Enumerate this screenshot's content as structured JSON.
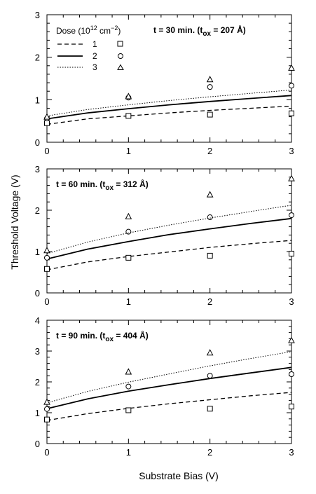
{
  "figure": {
    "xlabel": "Substrate Bias (V)",
    "ylabel": "Threshold Voltage (V)"
  },
  "legend": {
    "title": "Dose (10",
    "title_exp": "12",
    "title_mid": " cm",
    "title_exp2": "−2",
    "title_end": ")",
    "entries": [
      "1",
      "2",
      "3"
    ]
  },
  "chart_data": [
    {
      "type": "line",
      "title_prefix": "t = 30  min.  (t",
      "title_sub": "ox",
      "title_suffix": " = 207  Å)",
      "xlim": [
        0,
        3
      ],
      "ylim": [
        0,
        3
      ],
      "xticks": [
        "0",
        "1",
        "2",
        "3"
      ],
      "yticks": [
        "0",
        "1",
        "2",
        "3"
      ],
      "series": [
        {
          "name": "1",
          "marker": "square",
          "points_x": [
            0,
            1,
            2,
            3
          ],
          "points_y": [
            0.45,
            0.62,
            0.65,
            0.68
          ],
          "curve_x": [
            0,
            0.5,
            1,
            1.5,
            2,
            2.5,
            3
          ],
          "curve_y": [
            0.42,
            0.55,
            0.62,
            0.69,
            0.75,
            0.8,
            0.85
          ]
        },
        {
          "name": "2",
          "marker": "circle",
          "points_x": [
            0,
            1,
            2,
            3
          ],
          "points_y": [
            0.56,
            1.05,
            1.3,
            1.33
          ],
          "curve_x": [
            0,
            0.5,
            1,
            1.5,
            2,
            2.5,
            3
          ],
          "curve_y": [
            0.55,
            0.69,
            0.79,
            0.88,
            0.96,
            1.03,
            1.1
          ]
        },
        {
          "name": "3",
          "marker": "triangle",
          "points_x": [
            0,
            1,
            2,
            3
          ],
          "points_y": [
            0.6,
            1.08,
            1.48,
            1.75
          ],
          "curve_x": [
            0,
            0.5,
            1,
            1.5,
            2,
            2.5,
            3
          ],
          "curve_y": [
            0.62,
            0.77,
            0.88,
            0.98,
            1.07,
            1.15,
            1.23
          ]
        }
      ]
    },
    {
      "type": "line",
      "title_prefix": "t = 60  min.  (t",
      "title_sub": "ox",
      "title_suffix": " = 312  Å)",
      "xlim": [
        0,
        3
      ],
      "ylim": [
        0,
        3
      ],
      "xticks": [
        "0",
        "1",
        "2",
        "3"
      ],
      "yticks": [
        "0",
        "1",
        "2",
        "3"
      ],
      "series": [
        {
          "name": "1",
          "marker": "square",
          "points_x": [
            0,
            1,
            2,
            3
          ],
          "points_y": [
            0.58,
            0.85,
            0.9,
            0.95
          ],
          "curve_x": [
            0,
            0.5,
            1,
            1.5,
            2,
            2.5,
            3
          ],
          "curve_y": [
            0.56,
            0.75,
            0.88,
            0.99,
            1.1,
            1.19,
            1.27
          ]
        },
        {
          "name": "2",
          "marker": "circle",
          "points_x": [
            0,
            1,
            2,
            3
          ],
          "points_y": [
            0.85,
            1.48,
            1.83,
            1.88
          ],
          "curve_x": [
            0,
            0.5,
            1,
            1.5,
            2,
            2.5,
            3
          ],
          "curve_y": [
            0.82,
            1.06,
            1.24,
            1.41,
            1.55,
            1.68,
            1.8
          ]
        },
        {
          "name": "3",
          "marker": "triangle",
          "points_x": [
            0,
            1,
            2,
            3
          ],
          "points_y": [
            1.03,
            1.85,
            2.38,
            2.77
          ],
          "curve_x": [
            0,
            0.5,
            1,
            1.5,
            2,
            2.5,
            3
          ],
          "curve_y": [
            0.95,
            1.23,
            1.45,
            1.64,
            1.81,
            1.97,
            2.12
          ]
        }
      ]
    },
    {
      "type": "line",
      "title_prefix": "t = 90  min.  (t",
      "title_sub": "ox",
      "title_suffix": " = 404  Å)",
      "xlim": [
        0,
        3
      ],
      "ylim": [
        0,
        4
      ],
      "xticks": [
        "0",
        "1",
        "2",
        "3"
      ],
      "yticks": [
        "0",
        "1",
        "2",
        "3",
        "4"
      ],
      "series": [
        {
          "name": "1",
          "marker": "square",
          "points_x": [
            0,
            1,
            2,
            3
          ],
          "points_y": [
            0.78,
            1.08,
            1.13,
            1.2
          ],
          "curve_x": [
            0,
            0.5,
            1,
            1.5,
            2,
            2.5,
            3
          ],
          "curve_y": [
            0.75,
            0.97,
            1.14,
            1.29,
            1.42,
            1.55,
            1.66
          ]
        },
        {
          "name": "2",
          "marker": "circle",
          "points_x": [
            0,
            1,
            2,
            3
          ],
          "points_y": [
            1.12,
            1.85,
            2.2,
            2.25
          ],
          "curve_x": [
            0,
            0.5,
            1,
            1.5,
            2,
            2.5,
            3
          ],
          "curve_y": [
            1.13,
            1.45,
            1.7,
            1.91,
            2.11,
            2.29,
            2.47
          ]
        },
        {
          "name": "3",
          "marker": "triangle",
          "points_x": [
            0,
            1,
            2,
            3
          ],
          "points_y": [
            1.35,
            2.33,
            2.95,
            3.35
          ],
          "curve_x": [
            0,
            0.5,
            1,
            1.5,
            2,
            2.5,
            3
          ],
          "curve_y": [
            1.32,
            1.69,
            1.99,
            2.26,
            2.52,
            2.76,
            2.98
          ]
        }
      ]
    }
  ]
}
